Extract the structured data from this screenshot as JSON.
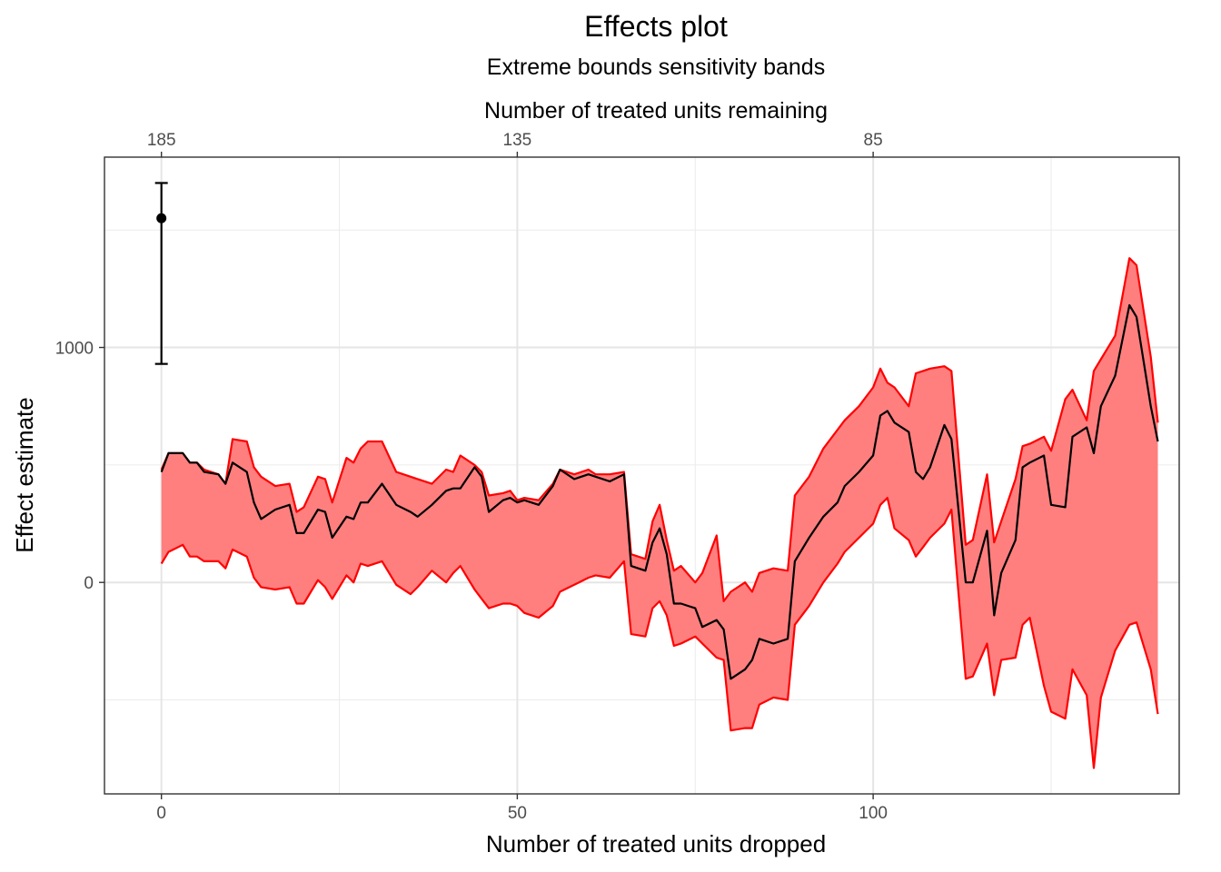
{
  "chart_data": {
    "type": "line",
    "title": "Effects plot",
    "subtitle": "Extreme bounds sensitivity bands",
    "xlabel": "Number of treated units dropped",
    "x2label": "Number of treated units remaining",
    "ylabel": "Effect estimate",
    "xlim": [
      -8,
      143
    ],
    "ylim": [
      -900,
      1810
    ],
    "x_ticks": [
      0,
      50,
      100
    ],
    "x_tick_labels": [
      "0",
      "50",
      "100"
    ],
    "x2_ticks": [
      0,
      50,
      100
    ],
    "x2_tick_labels": [
      "185",
      "135",
      "85"
    ],
    "y_ticks": [
      0,
      1000
    ],
    "y_tick_labels": [
      "0",
      "1000"
    ],
    "grid": true,
    "colors": {
      "band_fill": "#ff7f7f",
      "band_line": "#ff0000",
      "estimate_line": "#000000"
    },
    "point_estimate": {
      "x": 0,
      "y": 1550,
      "lower": 930,
      "upper": 1700
    },
    "x": [
      0,
      1,
      3,
      4,
      5,
      6,
      8,
      9,
      10,
      12,
      13,
      14,
      16,
      18,
      19,
      20,
      22,
      23,
      24,
      26,
      27,
      28,
      29,
      31,
      33,
      35,
      36,
      38,
      40,
      41,
      42,
      44,
      45,
      46,
      48,
      49,
      50,
      51,
      53,
      55,
      56,
      58,
      60,
      61,
      63,
      65,
      66,
      68,
      69,
      70,
      71,
      72,
      73,
      75,
      76,
      78,
      79,
      80,
      82,
      83,
      84,
      86,
      88,
      89,
      91,
      93,
      95,
      96,
      98,
      100,
      101,
      102,
      103,
      105,
      106,
      107,
      108,
      110,
      111,
      113,
      114,
      116,
      117,
      118,
      120,
      121,
      122,
      124,
      125,
      127,
      128,
      130,
      131,
      132,
      134,
      136,
      137,
      139,
      140
    ],
    "band_upper": [
      480,
      550,
      550,
      510,
      510,
      480,
      460,
      420,
      610,
      600,
      490,
      450,
      410,
      420,
      300,
      320,
      450,
      440,
      340,
      530,
      510,
      570,
      600,
      600,
      470,
      450,
      440,
      420,
      480,
      470,
      540,
      500,
      470,
      370,
      380,
      390,
      350,
      360,
      350,
      420,
      480,
      460,
      480,
      460,
      460,
      470,
      120,
      100,
      260,
      330,
      180,
      50,
      70,
      0,
      40,
      200,
      -80,
      -40,
      0,
      -40,
      40,
      60,
      50,
      370,
      450,
      570,
      650,
      690,
      750,
      830,
      910,
      850,
      830,
      750,
      890,
      900,
      910,
      920,
      900,
      160,
      180,
      460,
      170,
      260,
      440,
      580,
      590,
      620,
      560,
      780,
      820,
      690,
      900,
      950,
      1050,
      1380,
      1350,
      960,
      680
    ],
    "band_lower": [
      80,
      130,
      160,
      110,
      110,
      90,
      90,
      60,
      140,
      110,
      20,
      -20,
      -30,
      -20,
      -90,
      -90,
      10,
      -20,
      -70,
      30,
      0,
      80,
      70,
      90,
      -10,
      -50,
      -20,
      50,
      0,
      40,
      70,
      -30,
      -70,
      -110,
      -90,
      -90,
      -100,
      -130,
      -150,
      -100,
      -40,
      -10,
      20,
      30,
      20,
      90,
      -220,
      -230,
      -110,
      -80,
      -140,
      -270,
      -260,
      -230,
      -260,
      -320,
      -330,
      -630,
      -620,
      -620,
      -520,
      -490,
      -500,
      -180,
      -100,
      0,
      80,
      130,
      190,
      250,
      330,
      360,
      230,
      180,
      110,
      150,
      190,
      250,
      310,
      -410,
      -400,
      -260,
      -480,
      -330,
      -320,
      -180,
      -150,
      -440,
      -550,
      -580,
      -370,
      -480,
      -790,
      -490,
      -290,
      -180,
      -170,
      -370,
      -560
    ],
    "estimate": [
      470,
      550,
      550,
      510,
      510,
      470,
      460,
      420,
      510,
      470,
      340,
      270,
      310,
      330,
      210,
      210,
      310,
      300,
      190,
      280,
      270,
      340,
      340,
      420,
      330,
      300,
      280,
      330,
      390,
      400,
      400,
      490,
      450,
      300,
      350,
      360,
      340,
      350,
      330,
      410,
      480,
      440,
      460,
      450,
      430,
      460,
      70,
      50,
      170,
      230,
      120,
      -90,
      -90,
      -110,
      -190,
      -160,
      -200,
      -410,
      -370,
      -330,
      -240,
      -260,
      -240,
      90,
      190,
      280,
      340,
      410,
      470,
      540,
      710,
      730,
      680,
      640,
      470,
      440,
      490,
      670,
      610,
      0,
      0,
      220,
      -140,
      40,
      180,
      490,
      510,
      540,
      330,
      320,
      620,
      660,
      550,
      750,
      880,
      1180,
      1130,
      750,
      600
    ]
  }
}
